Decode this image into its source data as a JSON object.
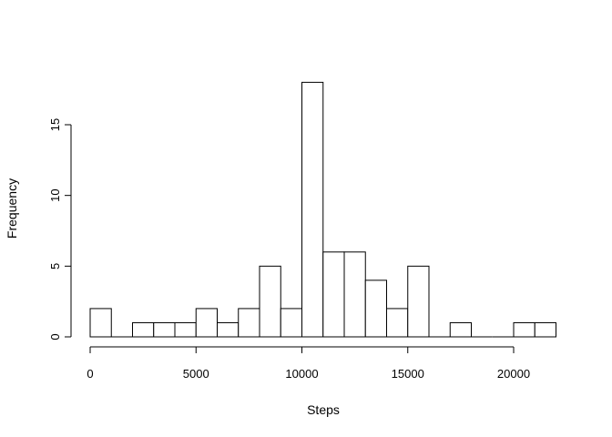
{
  "chart_data": {
    "type": "bar",
    "subtype": "histogram",
    "title": "",
    "xlabel": "Steps",
    "ylabel": "Frequency",
    "bin_width": 1000,
    "bins": [
      {
        "start": 0,
        "end": 1000,
        "count": 2
      },
      {
        "start": 1000,
        "end": 2000,
        "count": 0
      },
      {
        "start": 2000,
        "end": 3000,
        "count": 1
      },
      {
        "start": 3000,
        "end": 4000,
        "count": 1
      },
      {
        "start": 4000,
        "end": 5000,
        "count": 1
      },
      {
        "start": 5000,
        "end": 6000,
        "count": 2
      },
      {
        "start": 6000,
        "end": 7000,
        "count": 1
      },
      {
        "start": 7000,
        "end": 8000,
        "count": 2
      },
      {
        "start": 8000,
        "end": 9000,
        "count": 5
      },
      {
        "start": 9000,
        "end": 10000,
        "count": 2
      },
      {
        "start": 10000,
        "end": 11000,
        "count": 18
      },
      {
        "start": 11000,
        "end": 12000,
        "count": 6
      },
      {
        "start": 12000,
        "end": 13000,
        "count": 6
      },
      {
        "start": 13000,
        "end": 14000,
        "count": 4
      },
      {
        "start": 14000,
        "end": 15000,
        "count": 2
      },
      {
        "start": 15000,
        "end": 16000,
        "count": 5
      },
      {
        "start": 16000,
        "end": 17000,
        "count": 0
      },
      {
        "start": 17000,
        "end": 18000,
        "count": 1
      },
      {
        "start": 18000,
        "end": 19000,
        "count": 0
      },
      {
        "start": 19000,
        "end": 20000,
        "count": 0
      },
      {
        "start": 20000,
        "end": 21000,
        "count": 1
      },
      {
        "start": 21000,
        "end": 22000,
        "count": 1
      }
    ],
    "xlim": [
      0,
      22000
    ],
    "ylim": [
      0,
      18
    ],
    "x_ticks": [
      0,
      5000,
      10000,
      15000,
      20000
    ],
    "y_ticks": [
      0,
      5,
      10,
      15
    ],
    "grid": false,
    "legend": "none",
    "bar_fill": "#ffffff",
    "bar_stroke": "#000000"
  }
}
